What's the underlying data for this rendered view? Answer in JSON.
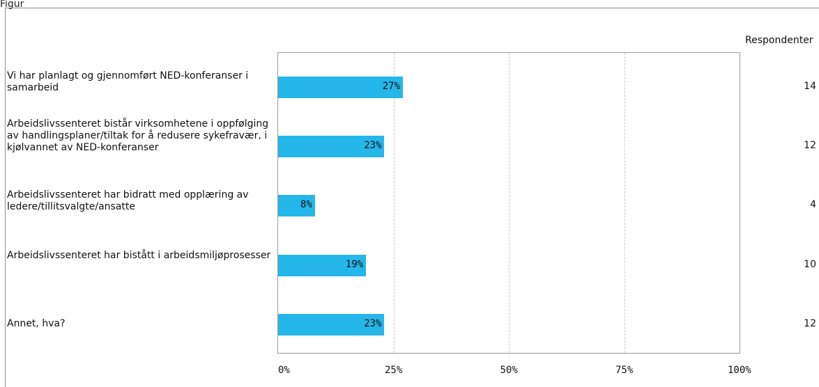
{
  "top_label": "Figur",
  "chart_data": {
    "type": "bar",
    "orientation": "horizontal",
    "categories": [
      "Vi har planlagt og gjennomført NED-konferanser i samarbeid",
      "Arbeidslivssenteret bistår virksomhetene i oppfølging av handlingsplaner/tiltak for å redusere sykefravær, i kjølvannet av NED-konferanser",
      "Arbeidslivssenteret har bidratt med opplæring av ledere/tillitsvalgte/ansatte",
      "Arbeidslivssenteret har bistått i arbeidsmiljøprosesser",
      "Annet, hva?"
    ],
    "values": [
      27,
      23,
      8,
      19,
      23
    ],
    "value_labels": [
      "27%",
      "23%",
      "8%",
      "19%",
      "23%"
    ],
    "respondents_header": "Respondenter",
    "respondents": [
      "14",
      "12",
      "4",
      "10",
      "12"
    ],
    "xlim": [
      0,
      100
    ],
    "x_ticks": [
      "0%",
      "25%",
      "50%",
      "75%",
      "100%"
    ],
    "grid": true,
    "bar_color": "#25b6ea"
  }
}
